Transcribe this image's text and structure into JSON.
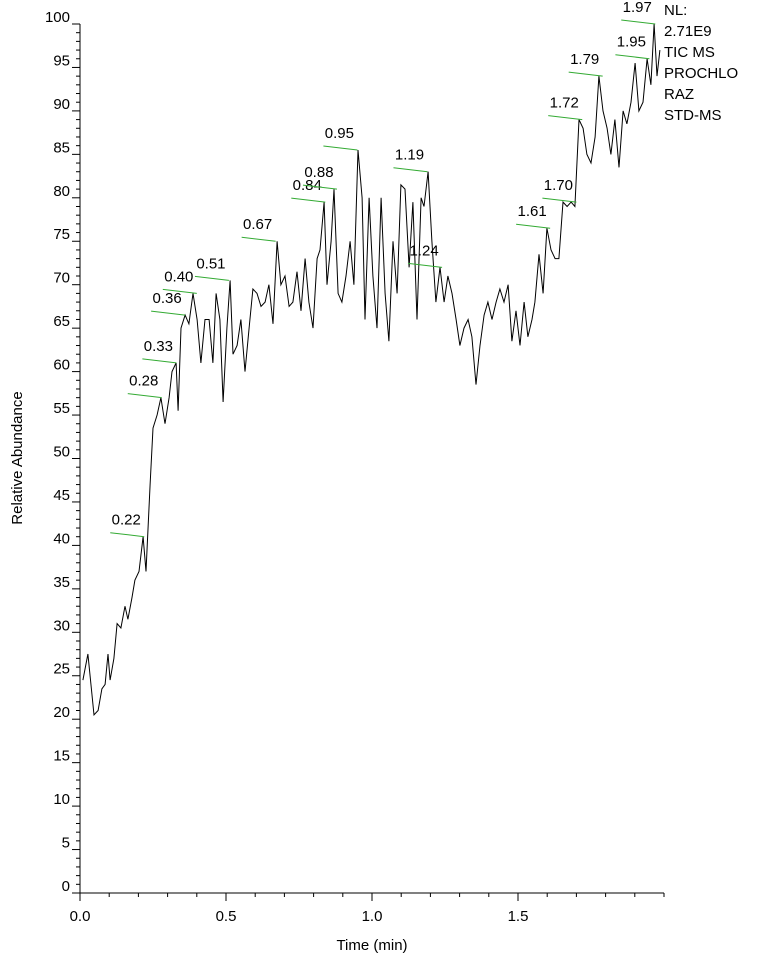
{
  "chart_data": {
    "type": "line",
    "xlabel": "Time (min)",
    "ylabel": "Relative Abundance",
    "annotation": [
      "NL:",
      "2.71E9",
      "TIC  MS",
      "PROCHLO",
      "RAZ",
      "STD-MS"
    ],
    "xlim": [
      0,
      2.0
    ],
    "ylim": [
      0,
      100
    ],
    "xticks": [
      {
        "value": 0,
        "label": "0.0"
      },
      0.5,
      {
        "value": 1,
        "label": "1.0"
      },
      1.5
    ],
    "yticks": [
      0,
      5,
      10,
      15,
      20,
      25,
      30,
      35,
      40,
      45,
      50,
      55,
      60,
      65,
      70,
      75,
      80,
      85,
      90,
      95,
      100
    ],
    "color": "#000000",
    "leader_color": "#33aa33",
    "x": [
      0.01,
      0.027,
      0.048,
      0.062,
      0.075,
      0.086,
      0.096,
      0.103,
      0.116,
      0.127,
      0.14,
      0.154,
      0.164,
      0.178,
      0.188,
      0.202,
      0.216,
      0.226,
      0.24,
      0.25,
      0.264,
      0.277,
      0.291,
      0.305,
      0.315,
      0.329,
      0.336,
      0.346,
      0.36,
      0.373,
      0.387,
      0.401,
      0.414,
      0.428,
      0.442,
      0.455,
      0.466,
      0.479,
      0.49,
      0.503,
      0.514,
      0.524,
      0.538,
      0.551,
      0.565,
      0.579,
      0.592,
      0.606,
      0.62,
      0.634,
      0.647,
      0.661,
      0.675,
      0.688,
      0.702,
      0.716,
      0.729,
      0.743,
      0.757,
      0.771,
      0.784,
      0.798,
      0.812,
      0.822,
      0.836,
      0.846,
      0.86,
      0.87,
      0.884,
      0.897,
      0.911,
      0.925,
      0.938,
      0.952,
      0.966,
      0.976,
      0.99,
      1.003,
      1.017,
      1.031,
      1.045,
      1.058,
      1.072,
      1.086,
      1.099,
      1.113,
      1.127,
      1.14,
      1.154,
      1.168,
      1.178,
      1.192,
      1.205,
      1.219,
      1.233,
      1.247,
      1.26,
      1.274,
      1.288,
      1.301,
      1.315,
      1.329,
      1.342,
      1.356,
      1.37,
      1.384,
      1.397,
      1.411,
      1.425,
      1.438,
      1.452,
      1.466,
      1.479,
      1.493,
      1.507,
      1.521,
      1.534,
      1.548,
      1.558,
      1.572,
      1.586,
      1.599,
      1.613,
      1.627,
      1.64,
      1.654,
      1.668,
      1.682,
      1.695,
      1.709,
      1.723,
      1.736,
      1.75,
      1.764,
      1.777,
      1.791,
      1.805,
      1.818,
      1.832,
      1.846,
      1.86,
      1.873,
      1.887,
      1.901,
      1.914,
      1.928,
      1.942,
      1.955,
      1.966,
      1.976,
      1.986
    ],
    "values": [
      24.5,
      27.5,
      20.5,
      21,
      23.5,
      24,
      27.5,
      24.5,
      27,
      31,
      30.5,
      33,
      31.5,
      34,
      36,
      37,
      41,
      37,
      47,
      53.5,
      55,
      57,
      54,
      57,
      60,
      61,
      55.5,
      65,
      66.5,
      65.5,
      69,
      66,
      61,
      66,
      66,
      61,
      69,
      66,
      56.5,
      65,
      70.5,
      62,
      63,
      66,
      60,
      65,
      69.5,
      69,
      67.5,
      68,
      70,
      65.5,
      75,
      70,
      71,
      67.5,
      68,
      71.5,
      67,
      73,
      68,
      65,
      73,
      74,
      79.5,
      70,
      75,
      81,
      69,
      68,
      71,
      75,
      70,
      85.5,
      80,
      66,
      80,
      71,
      65,
      80,
      69,
      63.5,
      75,
      69,
      81.5,
      81,
      72,
      79.5,
      66,
      80,
      79,
      83,
      75,
      68,
      72,
      68,
      71,
      69,
      66,
      63,
      65,
      66,
      64,
      58.5,
      63,
      66.5,
      68,
      66,
      68,
      69.5,
      68,
      70,
      63.5,
      67,
      63,
      68,
      64,
      66,
      68,
      73.5,
      69,
      76.5,
      74,
      73,
      73,
      79.5,
      79,
      79.5,
      79,
      89,
      88,
      85,
      84,
      87,
      94,
      90,
      88,
      85,
      89,
      83.5,
      90,
      88.5,
      91,
      95.5,
      90,
      91,
      96,
      93,
      100,
      94,
      97
    ],
    "peaks": {
      "x": [
        0.22,
        0.28,
        0.33,
        0.36,
        0.4,
        0.51,
        0.67,
        0.84,
        0.88,
        0.95,
        1.19,
        1.24,
        1.61,
        1.7,
        1.72,
        1.79,
        1.95,
        1.97
      ],
      "y": [
        41,
        57,
        61,
        66.5,
        69,
        70.5,
        75,
        79.5,
        81,
        85.5,
        83,
        72,
        76.5,
        79.5,
        89,
        94,
        96,
        100
      ],
      "value_labels": [
        "0.22",
        "0.28",
        "0.33",
        "0.36",
        "0.40",
        "0.51",
        "0.67",
        "0.84",
        "0.88",
        "0.95",
        "1.19",
        "1.24",
        "1.61",
        "1.70",
        "1.72",
        "1.79",
        "1.95",
        "1.97"
      ]
    }
  }
}
